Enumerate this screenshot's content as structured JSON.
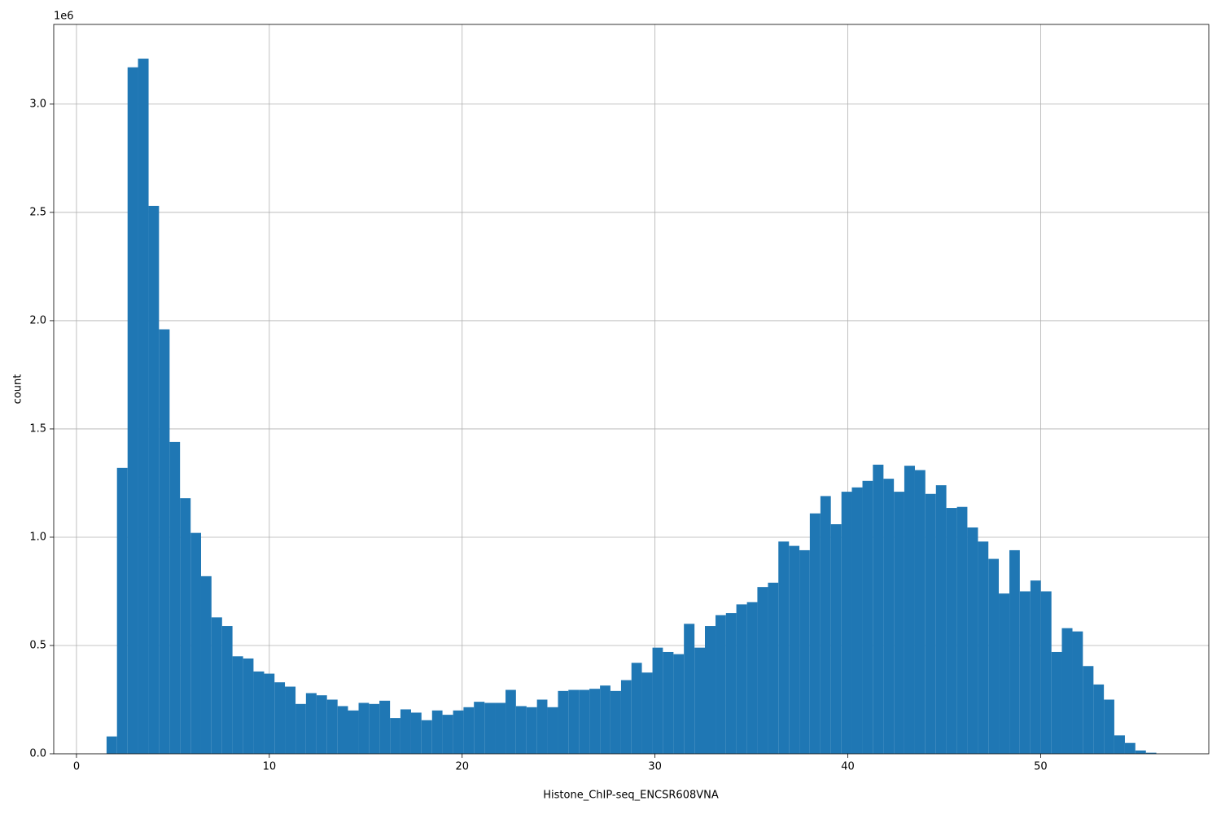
{
  "chart_data": {
    "type": "histogram",
    "x_label": "Histone_ChIP-seq_ENCSR608VNA",
    "y_label": "count",
    "y_offset_label": "1e6",
    "color": "#1f77b4",
    "grid": true,
    "bins": [
      1.56,
      2.1,
      2.65,
      3.19,
      3.74,
      4.28,
      4.83,
      5.37,
      5.92,
      6.46,
      7.0,
      7.55,
      8.09,
      8.64,
      9.18,
      9.73,
      10.27,
      10.81,
      11.36,
      11.9,
      12.45,
      12.99,
      13.54,
      14.08,
      14.63,
      15.17,
      15.71,
      16.26,
      16.8,
      17.35,
      17.89,
      18.44,
      18.98,
      19.53,
      20.07,
      20.61,
      21.16,
      21.7,
      22.25,
      22.79,
      23.34,
      23.88,
      24.42,
      24.97,
      25.51,
      26.06,
      26.6,
      27.15,
      27.69,
      28.24,
      28.78,
      29.32,
      29.87,
      30.41,
      30.96,
      31.5,
      32.05,
      32.59,
      33.14,
      33.68,
      34.22,
      34.77,
      35.31,
      35.86,
      36.4,
      36.95,
      37.49,
      38.03,
      38.58,
      39.12,
      39.67,
      40.21,
      40.76,
      41.3,
      41.85,
      42.39,
      42.93,
      43.48,
      44.02,
      44.57,
      45.11,
      45.66,
      46.2,
      46.75,
      47.29,
      47.83,
      48.38,
      48.92,
      49.47,
      50.01,
      50.56,
      51.1,
      51.65,
      52.19,
      52.74,
      53.28,
      53.82,
      54.37,
      54.91,
      55.46,
      56.0
    ],
    "values": [
      80000,
      1320000,
      3170000,
      3210000,
      2530000,
      1960000,
      1440000,
      1180000,
      1020000,
      820000,
      630000,
      590000,
      450000,
      440000,
      380000,
      370000,
      330000,
      310000,
      230000,
      280000,
      270000,
      250000,
      220000,
      200000,
      235000,
      230000,
      245000,
      165000,
      205000,
      190000,
      155000,
      200000,
      180000,
      200000,
      215000,
      240000,
      235000,
      235000,
      295000,
      220000,
      215000,
      250000,
      215000,
      290000,
      295000,
      295000,
      300000,
      315000,
      290000,
      340000,
      420000,
      375000,
      490000,
      470000,
      460000,
      600000,
      490000,
      590000,
      640000,
      650000,
      690000,
      700000,
      770000,
      790000,
      980000,
      960000,
      940000,
      1110000,
      1190000,
      1060000,
      1210000,
      1230000,
      1260000,
      1335000,
      1270000,
      1210000,
      1330000,
      1310000,
      1200000,
      1240000,
      1135000,
      1140000,
      1045000,
      980000,
      900000,
      740000,
      940000,
      750000,
      800000,
      750000,
      470000,
      580000,
      565000,
      405000,
      320000,
      250000,
      85000,
      50000,
      15000,
      5000
    ],
    "xlim": [
      -1.18,
      58.72
    ],
    "xticks": [
      0,
      10,
      20,
      30,
      40,
      50
    ],
    "ylim": [
      0,
      3368000
    ],
    "yticks": [
      {
        "value": 0,
        "label": "0.0"
      },
      {
        "value": 500000,
        "label": "0.5"
      },
      {
        "value": 1000000,
        "label": "1.0"
      },
      {
        "value": 1500000,
        "label": "1.5"
      },
      {
        "value": 2000000,
        "label": "2.0"
      },
      {
        "value": 2500000,
        "label": "2.5"
      },
      {
        "value": 3000000,
        "label": "3.0"
      }
    ]
  }
}
